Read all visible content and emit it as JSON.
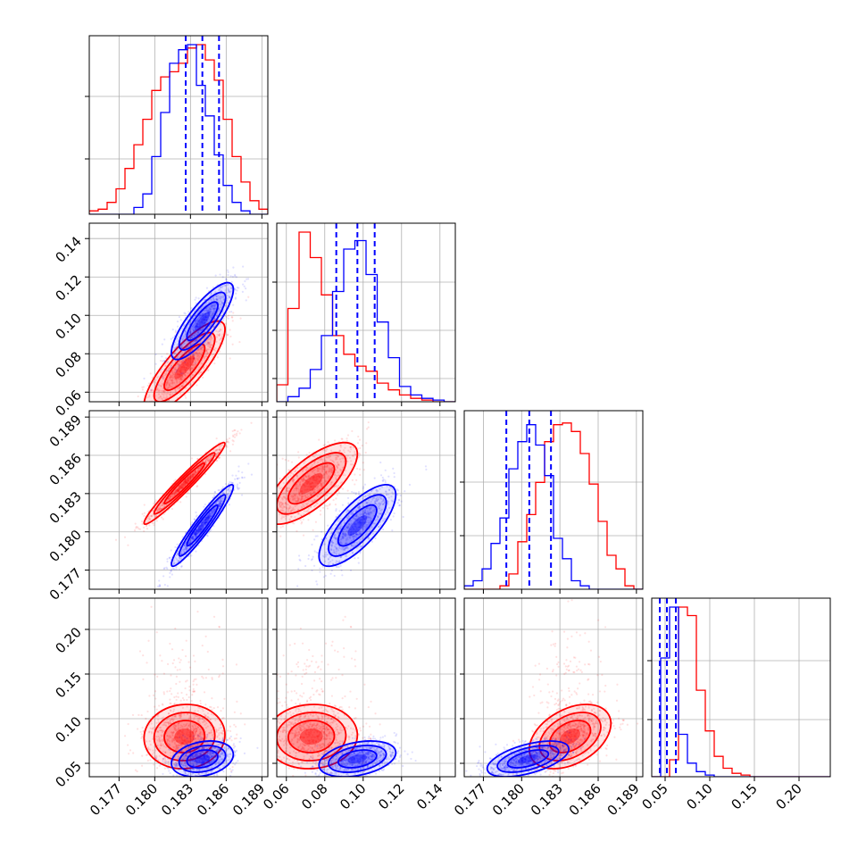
{
  "chart_data": {
    "type": "corner",
    "colors": {
      "red": "#ff0000",
      "blue": "#0000ff",
      "grid": "#b0b0b0"
    },
    "params": [
      {
        "index": 0,
        "range": [
          0.1745,
          0.1895
        ],
        "ticks": [
          0.177,
          0.18,
          0.183,
          0.186,
          0.189
        ],
        "tick_labels": [
          "0.177",
          "0.180",
          "0.183",
          "0.186",
          "0.189"
        ]
      },
      {
        "index": 1,
        "range": [
          0.055,
          0.148
        ],
        "ticks": [
          0.06,
          0.08,
          0.1,
          0.12,
          0.14
        ],
        "tick_labels": [
          "0.06",
          "0.08",
          "0.10",
          "0.12",
          "0.14"
        ]
      },
      {
        "index": 2,
        "range": [
          0.1755,
          0.1895
        ],
        "ticks": [
          0.177,
          0.18,
          0.183,
          0.186,
          0.189
        ],
        "tick_labels": [
          "0.177",
          "0.180",
          "0.183",
          "0.186",
          "0.189"
        ]
      },
      {
        "index": 3,
        "range": [
          0.035,
          0.235
        ],
        "ticks": [
          0.05,
          0.1,
          0.15,
          0.2
        ],
        "tick_labels": [
          "0.05",
          "0.10",
          "0.15",
          "0.20"
        ]
      }
    ],
    "series": [
      {
        "color": "red",
        "centers": [
          0.1825,
          0.073,
          0.1838,
          0.08
        ],
        "sigmas": [
          0.0017,
          0.012,
          0.0016,
          0.018
        ],
        "quantiles": {}
      },
      {
        "color": "blue",
        "centers": [
          0.184,
          0.097,
          0.1805,
          0.055
        ],
        "sigmas": [
          0.0013,
          0.01,
          0.0016,
          0.01
        ],
        "quantiles": {
          "0": [
            0.1826,
            0.184,
            0.1854
          ],
          "1": [
            0.086,
            0.097,
            0.106
          ],
          "2": [
            0.1788,
            0.1806,
            0.1823
          ],
          "3": [
            0.044,
            0.052,
            0.062
          ]
        }
      }
    ],
    "hist": {
      "0": {
        "red": [
          0.02,
          0.03,
          0.07,
          0.15,
          0.27,
          0.41,
          0.56,
          0.73,
          0.81,
          0.84,
          0.89,
          0.98,
          1.0,
          0.91,
          0.79,
          0.56,
          0.34,
          0.19,
          0.08,
          0.03
        ],
        "blue": [
          0,
          0,
          0,
          0,
          0,
          0.04,
          0.12,
          0.34,
          0.6,
          0.89,
          0.97,
          1.0,
          0.76,
          0.58,
          0.35,
          0.17,
          0.07,
          0.02,
          0,
          0
        ]
      },
      "1": {
        "red": [
          0.1,
          0.55,
          1.0,
          0.85,
          0.63,
          0.39,
          0.28,
          0.21,
          0.18,
          0.11,
          0.07,
          0.04,
          0.02,
          0.01,
          0,
          0
        ],
        "blue": [
          0,
          0.03,
          0.08,
          0.19,
          0.39,
          0.65,
          0.9,
          0.95,
          0.75,
          0.47,
          0.26,
          0.09,
          0.04,
          0.02,
          0.01,
          0
        ]
      },
      "2": {
        "red": [
          0,
          0,
          0,
          0,
          0.02,
          0.09,
          0.28,
          0.44,
          0.63,
          0.87,
          0.97,
          0.98,
          0.93,
          0.8,
          0.62,
          0.4,
          0.2,
          0.12,
          0.02,
          0
        ],
        "blue": [
          0.02,
          0.05,
          0.12,
          0.27,
          0.42,
          0.71,
          0.87,
          0.97,
          0.85,
          0.67,
          0.3,
          0.18,
          0.05,
          0.02,
          0,
          0,
          0,
          0,
          0,
          0
        ]
      },
      "3": {
        "red": [
          0,
          0,
          0.1,
          1.0,
          0.95,
          0.51,
          0.27,
          0.12,
          0.05,
          0.02,
          0.01,
          0,
          0,
          0,
          0,
          0,
          0,
          0,
          0,
          0
        ],
        "blue": [
          0,
          0.7,
          1.0,
          0.25,
          0.08,
          0.03,
          0.01,
          0,
          0,
          0,
          0,
          0,
          0,
          0,
          0,
          0,
          0,
          0,
          0,
          0
        ]
      }
    },
    "diag_hist_ymax_fraction": 0.95,
    "diag_y_tick_fractions": {
      "0": [
        0.31,
        0.66
      ],
      "1": [
        0.13,
        0.4,
        0.67
      ],
      "2": [
        0.3,
        0.6
      ],
      "3": [
        0.32,
        0.65
      ]
    }
  }
}
